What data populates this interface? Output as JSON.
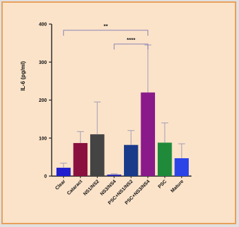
{
  "chart_data": {
    "type": "bar",
    "title": "",
    "xlabel": "",
    "ylabel": "IL-6 (pg/ml)",
    "ylim": [
      0,
      400
    ],
    "yticks": [
      0,
      100,
      200,
      300,
      400
    ],
    "grid": false,
    "categories": [
      "Clear",
      "Cataract",
      "NS1/NS2",
      "NS3/NS4",
      "PSC+NS1/NS2",
      "PSC+NS3/NS4",
      "PSC",
      "Mature"
    ],
    "values": [
      22,
      87,
      110,
      4,
      82,
      220,
      88,
      47
    ],
    "errors": [
      12,
      30,
      85,
      2,
      38,
      125,
      52,
      38
    ],
    "colors": [
      "#1f1fd0",
      "#8a1040",
      "#444444",
      "#2a2ab0",
      "#1a3a8a",
      "#8a1a8a",
      "#1f8a3a",
      "#2a44e8"
    ],
    "significance": [
      {
        "from": "Clear",
        "to": "PSC+NS3/NS4",
        "label": "**"
      },
      {
        "from": "NS3/NS4",
        "to": "PSC+NS3/NS4",
        "label": "****"
      }
    ]
  }
}
